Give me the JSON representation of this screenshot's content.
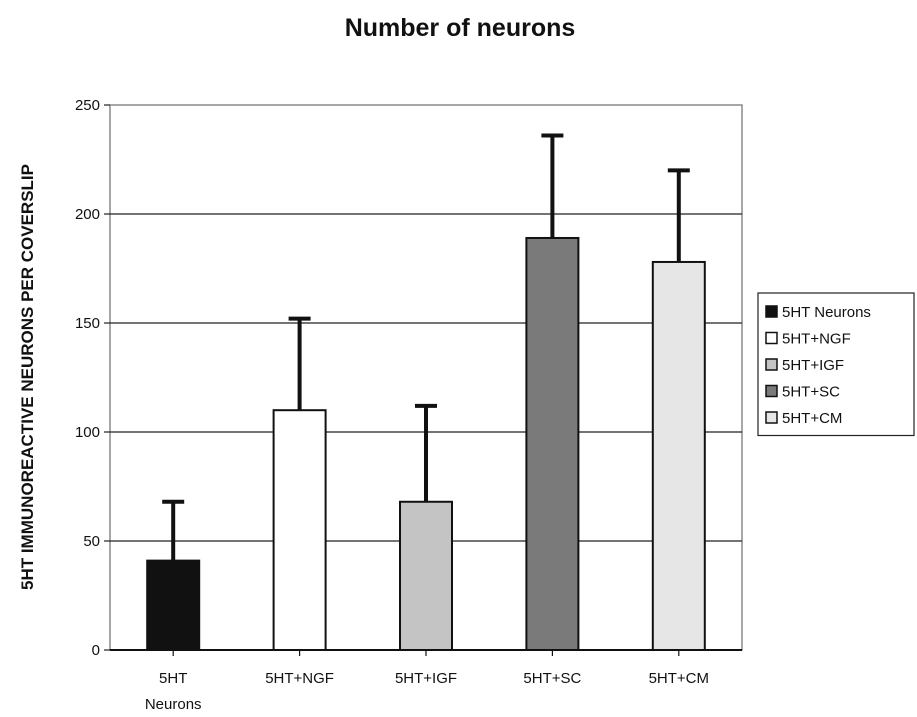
{
  "chart_data": {
    "type": "bar",
    "title": "Number of neurons",
    "xlabel": "",
    "ylabel": "5HT IMMUNOREACTIVE NEURONS PER COVERSLIP",
    "ylim": [
      0,
      250
    ],
    "yticks": [
      0,
      50,
      100,
      150,
      200,
      250
    ],
    "grid": true,
    "legend_position": "right",
    "categories": [
      {
        "label": [
          "5HT",
          "Neurons"
        ],
        "legend": "5HT Neurons",
        "value": 41,
        "error": 27,
        "color": "#111111"
      },
      {
        "label": [
          "5HT+NGF"
        ],
        "legend": "5HT+NGF",
        "value": 110,
        "error": 42,
        "color": "#ffffff"
      },
      {
        "label": [
          "5HT+IGF"
        ],
        "legend": "5HT+IGF",
        "value": 68,
        "error": 44,
        "color": "#c4c4c4"
      },
      {
        "label": [
          "5HT+SC"
        ],
        "legend": "5HT+SC",
        "value": 189,
        "error": 47,
        "color": "#7a7a7a"
      },
      {
        "label": [
          "5HT+CM"
        ],
        "legend": "5HT+CM",
        "value": 178,
        "error": 42,
        "color": "#e6e6e6"
      }
    ]
  }
}
